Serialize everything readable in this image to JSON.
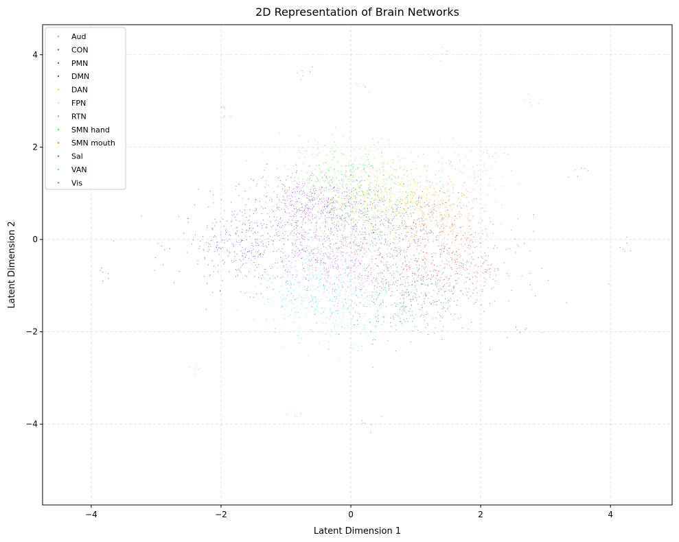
{
  "chart_data": {
    "type": "scatter",
    "title": "2D Representation of Brain Networks",
    "xlabel": "Latent Dimension 1",
    "ylabel": "Latent Dimension 2",
    "xlim": [
      -4.75,
      4.95
    ],
    "ylim": [
      -5.75,
      4.65
    ],
    "xticks": [
      -4,
      -2,
      0,
      2,
      4
    ],
    "yticks": [
      -4,
      -2,
      0,
      2,
      4
    ],
    "grid": true,
    "grid_style": "dashed",
    "legend_position": "top-left",
    "series": [
      {
        "name": "Aud",
        "color": "#ff8c8c",
        "clusters": [
          [
            1.8,
            1.4,
            0.05
          ]
        ],
        "points": [
          [
            0.3,
            1.2
          ],
          [
            2.1,
            1.8
          ],
          [
            2.8,
            3.0
          ],
          [
            1.5,
            1.6
          ]
        ]
      },
      {
        "name": "CON",
        "color": "#2e7d6b",
        "clusters": [
          [
            0.9,
            -1.2,
            0.4
          ],
          [
            0.2,
            0.4,
            0.3
          ]
        ],
        "points": [
          [
            0.8,
            -1.5
          ],
          [
            1.1,
            -0.9
          ],
          [
            0.6,
            -1.8
          ],
          [
            -0.2,
            0.5
          ],
          [
            1.3,
            -1.4
          ]
        ]
      },
      {
        "name": "PMN",
        "color": "#5e35b1",
        "clusters": [
          [
            -0.5,
            0.7,
            0.3
          ]
        ],
        "points": [
          [
            -0.6,
            0.9
          ],
          [
            -0.3,
            0.6
          ],
          [
            -0.9,
            0.8
          ]
        ]
      },
      {
        "name": "DMN",
        "color": "#3b3bea",
        "clusters": [
          [
            -1.5,
            -0.1,
            0.45
          ],
          [
            0.8,
            0.3,
            0.15
          ]
        ],
        "points": [
          [
            -1.8,
            0.0
          ],
          [
            -1.2,
            0.2
          ],
          [
            -2.2,
            -0.2
          ],
          [
            -1.5,
            -0.3
          ],
          [
            -3.8,
            -0.7
          ]
        ]
      },
      {
        "name": "DAN",
        "color": "#e6e600",
        "clusters": [
          [
            0.5,
            0.9,
            0.4
          ]
        ],
        "points": [
          [
            0.4,
            1.0
          ],
          [
            0.9,
            0.8
          ],
          [
            1.2,
            1.0
          ],
          [
            0.2,
            0.7
          ]
        ]
      },
      {
        "name": "FPN",
        "color": "#ffe0b2",
        "clusters": [
          [
            1.0,
            0.2,
            0.2
          ]
        ],
        "points": [
          [
            1.1,
            0.0
          ],
          [
            0.7,
            0.4
          ]
        ]
      },
      {
        "name": "RTN",
        "color": "#ff80ab",
        "clusters": [
          [
            0.1,
            -0.6,
            0.15
          ]
        ],
        "points": [
          [
            0.0,
            -0.5
          ],
          [
            0.3,
            -0.8
          ]
        ]
      },
      {
        "name": "SMN hand",
        "color": "#2ff02f",
        "clusters": [
          [
            0.0,
            1.3,
            0.4
          ]
        ],
        "points": [
          [
            0.0,
            1.5
          ],
          [
            -0.2,
            1.2
          ],
          [
            0.3,
            1.7
          ],
          [
            0.2,
            3.3
          ],
          [
            1.4,
            4.0
          ]
        ]
      },
      {
        "name": "SMN mouth",
        "color": "#ff8c00",
        "clusters": [
          [
            1.3,
            0.6,
            0.2
          ]
        ],
        "points": [
          [
            1.3,
            0.7
          ],
          [
            1.5,
            0.3
          ],
          [
            1.0,
            0.9
          ]
        ]
      },
      {
        "name": "Sal",
        "color": "#e53935",
        "clusters": [
          [
            1.4,
            -0.5,
            0.5
          ]
        ],
        "points": [
          [
            1.7,
            0.0
          ],
          [
            1.2,
            -0.8
          ],
          [
            1.8,
            -1.2
          ],
          [
            3.5,
            1.5
          ],
          [
            4.2,
            -0.1
          ],
          [
            2.6,
            -2.0
          ]
        ]
      },
      {
        "name": "VAN",
        "color": "#26f0f0",
        "clusters": [
          [
            -0.3,
            -1.2,
            0.45
          ]
        ],
        "points": [
          [
            -0.5,
            -0.9
          ],
          [
            -0.1,
            -1.5
          ],
          [
            0.1,
            -1.8
          ],
          [
            -0.8,
            -3.8
          ],
          [
            -2.4,
            -2.8
          ],
          [
            -0.5,
            2.0
          ]
        ]
      },
      {
        "name": "Vis",
        "color": "#e040fb",
        "clusters": [
          [
            -0.4,
            -0.5,
            0.25
          ],
          [
            -0.7,
            0.8,
            0.2
          ]
        ],
        "points": [
          [
            -0.4,
            -0.5
          ],
          [
            -0.3,
            -0.6
          ],
          [
            -0.6,
            -0.4
          ],
          [
            -2.0,
            2.8
          ],
          [
            -0.7,
            3.6
          ],
          [
            0.3,
            -3.9
          ]
        ]
      }
    ]
  }
}
